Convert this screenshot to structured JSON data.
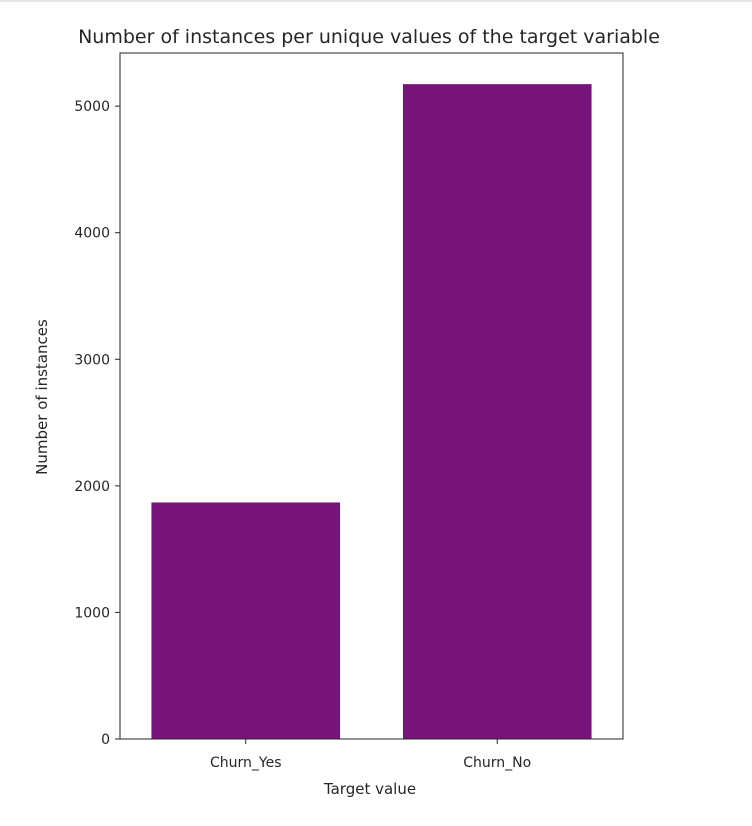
{
  "chart_data": {
    "type": "bar",
    "title": "Number of instances per unique values of the target variable",
    "xlabel": "Target value",
    "ylabel": "Number of instances",
    "categories": [
      "Churn_Yes",
      "Churn_No"
    ],
    "values": [
      1869,
      5174
    ],
    "ylim": [
      0,
      5420
    ],
    "yticks": [
      0,
      1000,
      2000,
      3000,
      4000,
      5000
    ],
    "bar_color": "#76147a",
    "grid": false,
    "legend": "none"
  }
}
